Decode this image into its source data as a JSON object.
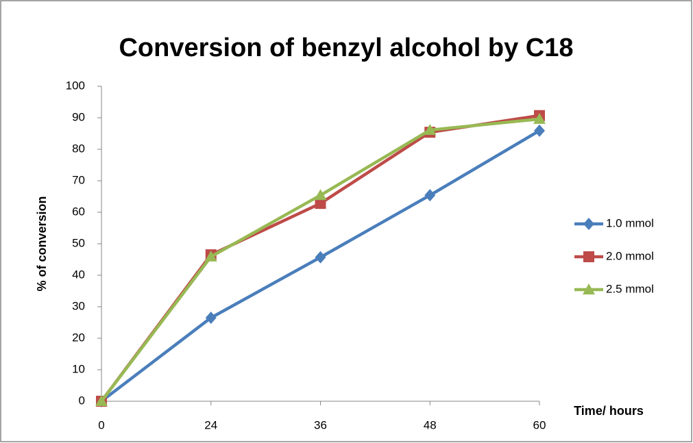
{
  "chart_data": {
    "type": "line",
    "title": "Conversion of benzyl alcohol by C18",
    "x_label": "Time/ hours",
    "y_label": "% of conversion",
    "categories": [
      "0",
      "24",
      "36",
      "48",
      "60"
    ],
    "series": [
      {
        "name": "1.0 mmol",
        "color": "#4a7ebb",
        "marker": "diamond",
        "values": [
          0,
          26.5,
          45.7,
          65.4,
          85.9
        ]
      },
      {
        "name": "2.0 mmol",
        "color": "#be4b48",
        "marker": "square",
        "values": [
          0,
          46.5,
          62.8,
          85.4,
          90.7
        ]
      },
      {
        "name": "2.5 mmol",
        "color": "#98b954",
        "marker": "triangle",
        "values": [
          0,
          45.9,
          65.4,
          86.1,
          89.6
        ]
      }
    ],
    "ylim": [
      0,
      100
    ],
    "yticks": [
      0,
      10,
      20,
      30,
      40,
      50,
      60,
      70,
      80,
      90,
      100
    ],
    "grid": false,
    "legend": "right"
  }
}
